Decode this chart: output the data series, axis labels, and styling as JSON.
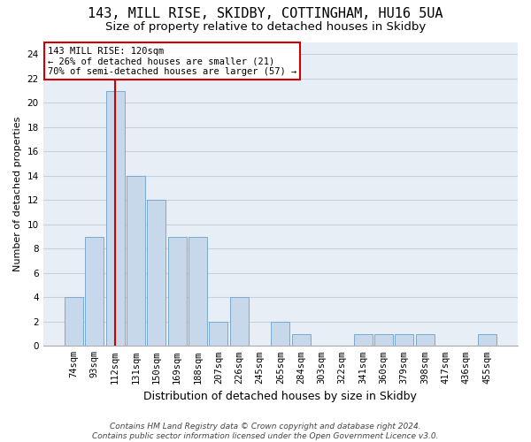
{
  "title1": "143, MILL RISE, SKIDBY, COTTINGHAM, HU16 5UA",
  "title2": "Size of property relative to detached houses in Skidby",
  "xlabel": "Distribution of detached houses by size in Skidby",
  "ylabel": "Number of detached properties",
  "categories": [
    "74sqm",
    "93sqm",
    "112sqm",
    "131sqm",
    "150sqm",
    "169sqm",
    "188sqm",
    "207sqm",
    "226sqm",
    "245sqm",
    "265sqm",
    "284sqm",
    "303sqm",
    "322sqm",
    "341sqm",
    "360sqm",
    "379sqm",
    "398sqm",
    "417sqm",
    "436sqm",
    "455sqm"
  ],
  "values": [
    4,
    9,
    21,
    14,
    12,
    9,
    9,
    2,
    4,
    0,
    2,
    1,
    0,
    0,
    1,
    1,
    1,
    1,
    0,
    0,
    1
  ],
  "bar_color": "#c8d8eb",
  "bar_edgecolor": "#7aaacf",
  "highlight_index": 2,
  "highlight_color": "#cc0000",
  "ylim": [
    0,
    25
  ],
  "yticks": [
    0,
    2,
    4,
    6,
    8,
    10,
    12,
    14,
    16,
    18,
    20,
    22,
    24
  ],
  "annotation_line1": "143 MILL RISE: 120sqm",
  "annotation_line2": "← 26% of detached houses are smaller (21)",
  "annotation_line3": "70% of semi-detached houses are larger (57) →",
  "annotation_box_facecolor": "#ffffff",
  "annotation_box_edgecolor": "#cc0000",
  "grid_color": "#c8d0dc",
  "background_color": "#e8eef5",
  "footer_line1": "Contains HM Land Registry data © Crown copyright and database right 2024.",
  "footer_line2": "Contains public sector information licensed under the Open Government Licence v3.0.",
  "title1_fontsize": 11,
  "title2_fontsize": 9.5,
  "xlabel_fontsize": 9,
  "ylabel_fontsize": 8,
  "tick_fontsize": 7.5,
  "annotation_fontsize": 7.5,
  "footer_fontsize": 6.5
}
